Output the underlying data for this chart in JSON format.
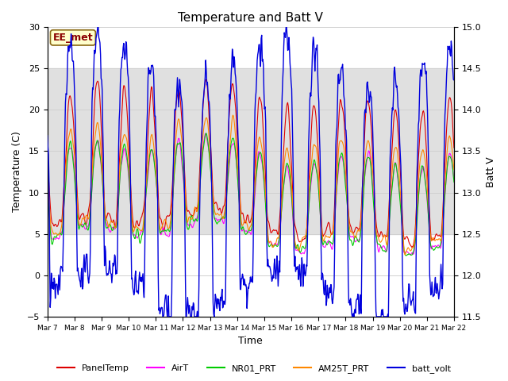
{
  "title": "Temperature and Batt V",
  "xlabel": "Time",
  "ylabel_left": "Temperature (C)",
  "ylabel_right": "Batt V",
  "ylim_left": [
    -5,
    30
  ],
  "ylim_right": [
    11.5,
    15.0
  ],
  "annotation_text": "EE_met",
  "shaded_band": [
    5,
    25
  ],
  "background_color": "#ffffff",
  "grid_color": "#d0d0d0",
  "series_colors": {
    "PanelTemp": "#dd0000",
    "AirT": "#ff00ff",
    "NR01_PRT": "#00cc00",
    "AM25T_PRT": "#ff8800",
    "batt_volt": "#0000dd"
  },
  "legend_labels": [
    "PanelTemp",
    "AirT",
    "NR01_PRT",
    "AM25T_PRT",
    "batt_volt"
  ],
  "legend_colors": [
    "#dd0000",
    "#ff00ff",
    "#00cc00",
    "#ff8800",
    "#0000dd"
  ],
  "yticks_left": [
    -5,
    0,
    5,
    10,
    15,
    20,
    25,
    30
  ],
  "yticks_right": [
    11.5,
    12.0,
    12.5,
    13.0,
    13.5,
    14.0,
    14.5,
    15.0
  ],
  "x_tick_labels": [
    "Mar 7",
    "Mar 8",
    "Mar 9",
    "Mar 10",
    "Mar 11",
    "Mar 12",
    "Mar 13",
    "Mar 14",
    "Mar 15",
    "Mar 16",
    "Mar 17",
    "Mar 18",
    "Mar 19",
    "Mar 20",
    "Mar 21",
    "Mar 22"
  ]
}
